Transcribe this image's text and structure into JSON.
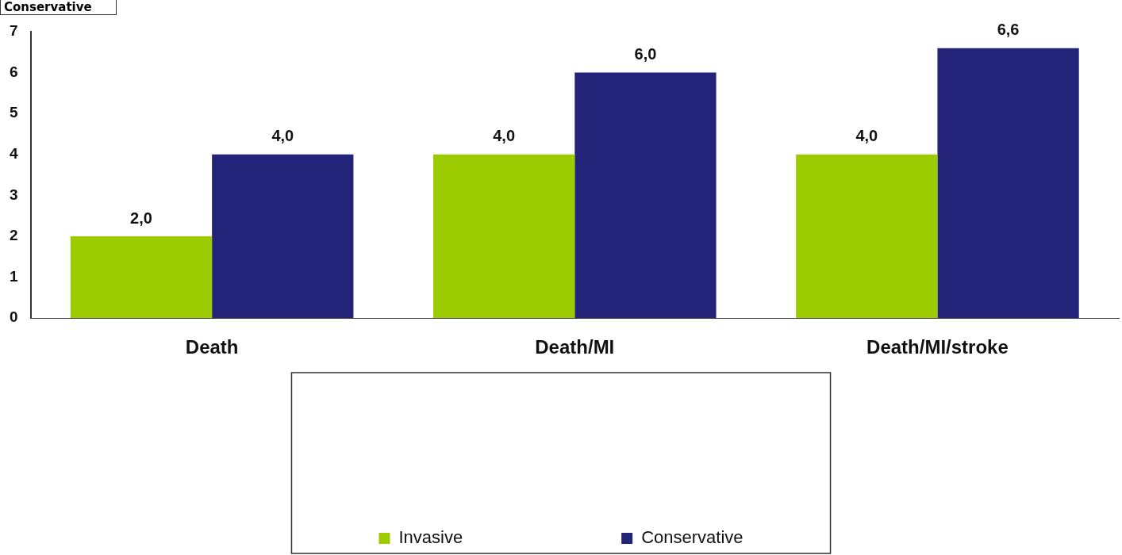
{
  "chart_data": {
    "type": "bar",
    "categories": [
      "Death",
      "Death/MI",
      "Death/MI/stroke"
    ],
    "series": [
      {
        "name": "Invasive",
        "color": "#9ccc00",
        "values": [
          2.0,
          4.0,
          4.0
        ],
        "value_labels": [
          "2,0",
          "4,0",
          "4,0"
        ]
      },
      {
        "name": "Conservative",
        "color": "#23237a",
        "values": [
          4.0,
          6.0,
          6.6
        ],
        "value_labels": [
          "4,0",
          "6,0",
          "6,6"
        ]
      }
    ],
    "ylim": [
      0,
      7
    ],
    "yticks": [
      0,
      1,
      2,
      3,
      4,
      5,
      6,
      7
    ],
    "grid": false,
    "legend": "bottom",
    "annotations": [
      "Conservative"
    ]
  }
}
